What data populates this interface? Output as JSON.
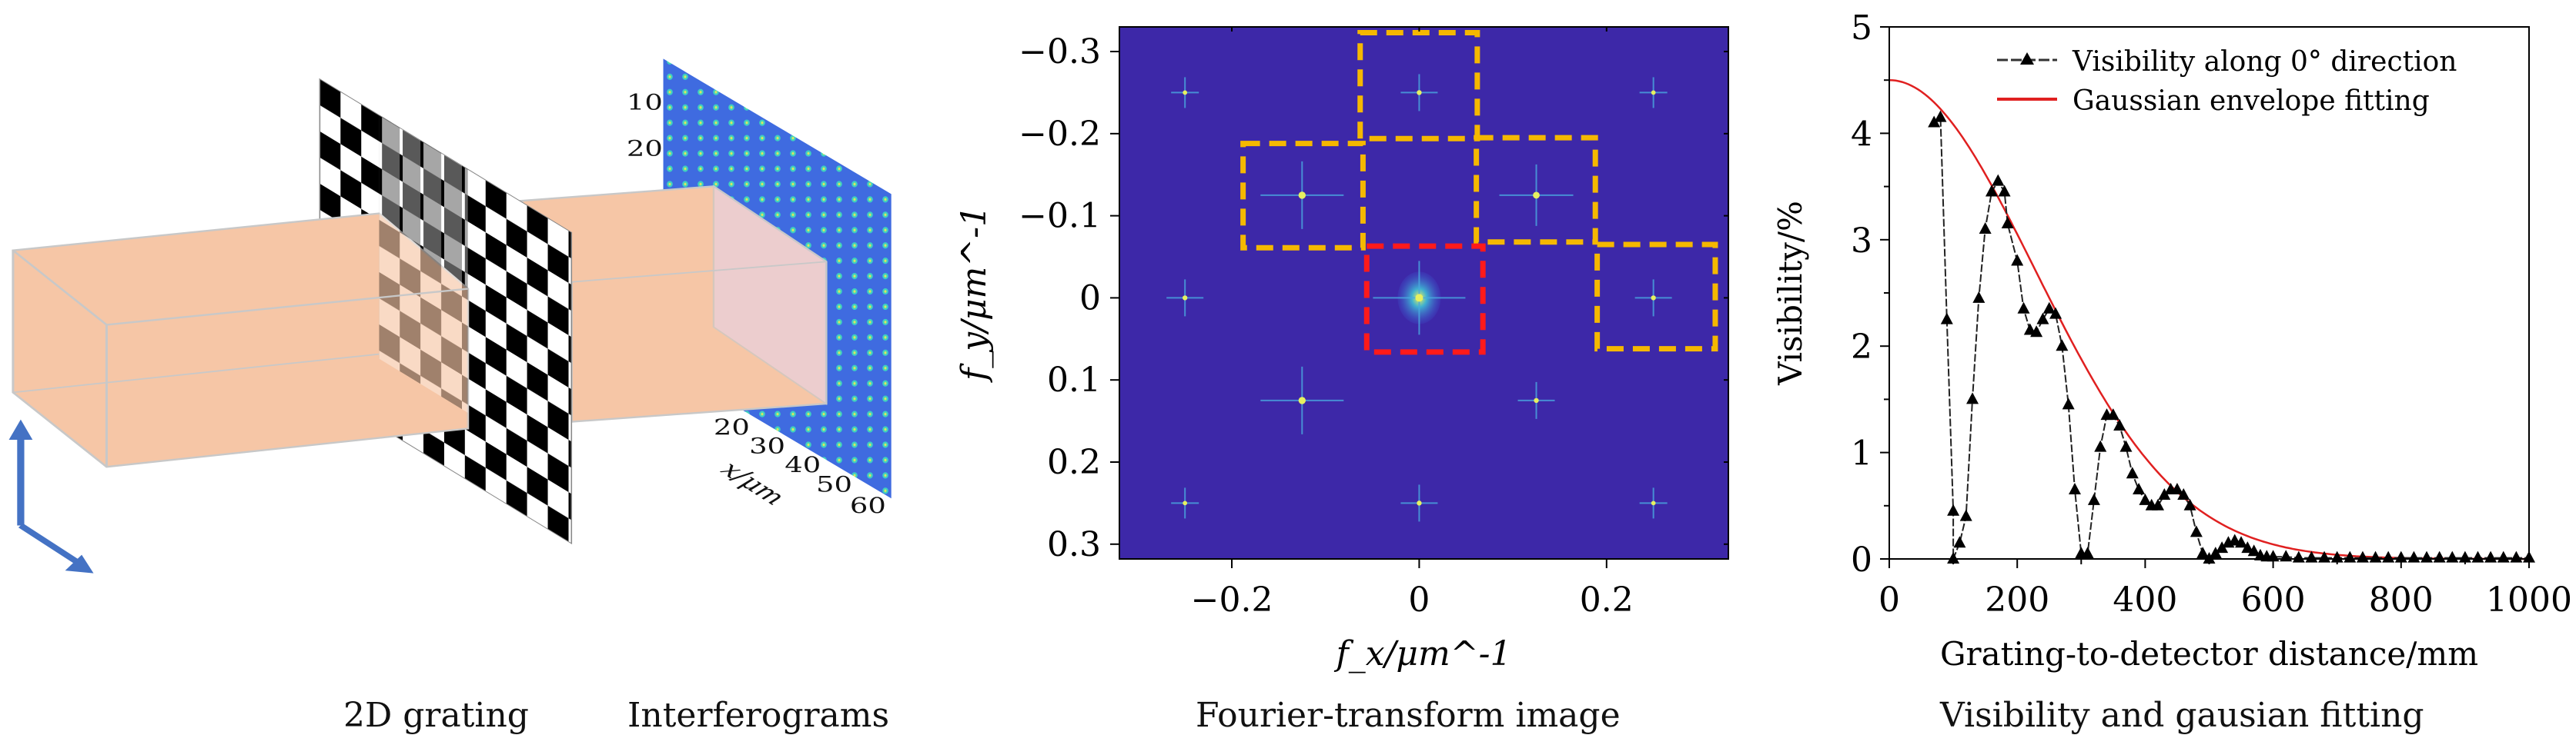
{
  "diagram": {
    "caption_grating": "2D grating",
    "caption_interferograms": "Interferograms",
    "y_ticks": [
      "10",
      "20"
    ],
    "x_ticks": [
      "20",
      "30",
      "40",
      "50",
      "60"
    ],
    "x_label": "x/μm",
    "colors": {
      "beam": "#f6c6a6",
      "arrow": "#4472c4",
      "detector": "#3f6be0"
    }
  },
  "chart_data": [
    {
      "type": "heatmap",
      "title": "Fourier-transform image",
      "xlabel": "f_x/μm^-1",
      "ylabel": "f_y/μm^-1",
      "xlim": [
        -0.32,
        0.33
      ],
      "ylim": [
        -0.33,
        0.318
      ],
      "y_inverted": true,
      "x_ticks": [
        -0.2,
        0,
        0.2
      ],
      "x_tick_labels": [
        "−0.2",
        "0",
        "0.2"
      ],
      "y_ticks": [
        -0.3,
        -0.2,
        -0.1,
        0,
        0.1,
        0.2,
        0.3
      ],
      "y_tick_labels": [
        "−0.3",
        "−0.2",
        "−0.1",
        "0",
        "0.1",
        "0.2",
        "0.3"
      ],
      "background_color": "#3d28a8",
      "peaks": [
        {
          "fx": -0.25,
          "fy": -0.25,
          "strength": 0.3
        },
        {
          "fx": 0,
          "fy": -0.25,
          "strength": 0.4
        },
        {
          "fx": 0.25,
          "fy": -0.25,
          "strength": 0.3
        },
        {
          "fx": -0.125,
          "fy": -0.125,
          "strength": 0.9
        },
        {
          "fx": 0.125,
          "fy": -0.125,
          "strength": 0.8
        },
        {
          "fx": -0.25,
          "fy": 0,
          "strength": 0.4
        },
        {
          "fx": 0,
          "fy": 0,
          "strength": 1.0
        },
        {
          "fx": 0.25,
          "fy": 0,
          "strength": 0.4
        },
        {
          "fx": -0.125,
          "fy": 0.125,
          "strength": 0.9
        },
        {
          "fx": 0.125,
          "fy": 0.125,
          "strength": 0.4
        },
        {
          "fx": -0.25,
          "fy": 0.25,
          "strength": 0.3
        },
        {
          "fx": 0,
          "fy": 0.25,
          "strength": 0.4
        },
        {
          "fx": 0.25,
          "fy": 0.25,
          "strength": 0.3
        }
      ],
      "regions": [
        {
          "color": "#f5b800",
          "fx": [
            -0.063,
            0.062
          ],
          "fy": [
            -0.323,
            -0.194
          ]
        },
        {
          "color": "#f5b800",
          "fx": [
            -0.188,
            -0.06
          ],
          "fy": [
            -0.188,
            -0.061
          ]
        },
        {
          "color": "#f5b800",
          "fx": [
            0.061,
            0.188
          ],
          "fy": [
            -0.195,
            -0.068
          ]
        },
        {
          "color": "#f5b800",
          "fx": [
            0.19,
            0.316
          ],
          "fy": [
            -0.065,
            0.062
          ]
        },
        {
          "color": "#ff1a1a",
          "fx": [
            -0.056,
            0.068
          ],
          "fy": [
            -0.063,
            0.066
          ]
        }
      ]
    },
    {
      "type": "line",
      "title": "Visibility and gausian fitting",
      "xlabel": "Grating-to-detector distance/mm",
      "ylabel": "Visibility/%",
      "xlim": [
        0,
        1000
      ],
      "ylim": [
        0,
        5
      ],
      "x_ticks": [
        0,
        200,
        400,
        600,
        800,
        1000
      ],
      "x_tick_labels": [
        "0",
        "200",
        "400",
        "600",
        "800",
        "1000"
      ],
      "y_ticks": [
        0,
        1,
        2,
        3,
        4,
        5
      ],
      "y_tick_labels": [
        "0",
        "1",
        "2",
        "3",
        "4",
        "5"
      ],
      "legend_position": "top-right",
      "series": [
        {
          "name": "Visibility along 0° direction",
          "color": "#000000",
          "marker": "triangle",
          "x": [
            70,
            80,
            90,
            100,
            100,
            110,
            120,
            130,
            140,
            150,
            160,
            170,
            180,
            185,
            200,
            210,
            220,
            230,
            240,
            250,
            260,
            270,
            280,
            290,
            300,
            310,
            320,
            330,
            340,
            350,
            360,
            370,
            380,
            390,
            400,
            410,
            420,
            430,
            440,
            450,
            460,
            470,
            480,
            490,
            500,
            510,
            520,
            530,
            540,
            550,
            560,
            570,
            580,
            590,
            600,
            620,
            640,
            660,
            680,
            700,
            720,
            740,
            760,
            780,
            800,
            820,
            840,
            860,
            880,
            900,
            920,
            940,
            960,
            980,
            1000
          ],
          "y": [
            4.1,
            4.15,
            2.25,
            0.45,
            0.0,
            0.15,
            0.4,
            1.5,
            2.45,
            3.1,
            3.45,
            3.55,
            3.45,
            3.15,
            2.8,
            2.35,
            2.15,
            2.13,
            2.25,
            2.35,
            2.3,
            2.0,
            1.45,
            0.65,
            0.05,
            0.05,
            0.55,
            1.05,
            1.35,
            1.35,
            1.25,
            1.05,
            0.8,
            0.65,
            0.55,
            0.5,
            0.5,
            0.6,
            0.65,
            0.65,
            0.6,
            0.5,
            0.25,
            0.05,
            0.0,
            0.05,
            0.1,
            0.15,
            0.17,
            0.15,
            0.1,
            0.07,
            0.03,
            0.02,
            0.02,
            0.02,
            0.01,
            0.01,
            0.01,
            0.01,
            0.01,
            0.01,
            0.01,
            0.01,
            0.01,
            0.01,
            0.01,
            0.01,
            0.01,
            0.01,
            0.01,
            0.01,
            0.01,
            0.01,
            0.01
          ]
        },
        {
          "name": "Gaussian envelope fitting",
          "color": "#e02020",
          "model": "gaussian",
          "amplitude": 4.5,
          "center": 0,
          "sigma": 227
        }
      ]
    }
  ]
}
